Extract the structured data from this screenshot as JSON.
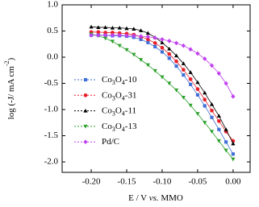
{
  "chart_data": {
    "type": "line",
    "x_label": "E / V vs. MMO",
    "y_label": "log (-J/ mA cm-2)",
    "x": [
      -0.2,
      -0.19,
      -0.18,
      -0.17,
      -0.16,
      -0.15,
      -0.14,
      -0.13,
      -0.12,
      -0.11,
      -0.1,
      -0.09,
      -0.08,
      -0.07,
      -0.06,
      -0.05,
      -0.04,
      -0.03,
      -0.02,
      -0.01,
      0.0
    ],
    "series": [
      {
        "name": "Co3O4-10",
        "color": "#3f6fd8",
        "marker": "square",
        "values": [
          0.42,
          0.42,
          0.42,
          0.41,
          0.41,
          0.4,
          0.38,
          0.34,
          0.28,
          0.2,
          0.1,
          -0.02,
          -0.17,
          -0.34,
          -0.52,
          -0.72,
          -0.93,
          -1.15,
          -1.38,
          -1.62,
          -1.85
        ]
      },
      {
        "name": "Co3O4-31",
        "color": "#e8202a",
        "marker": "circle",
        "values": [
          0.48,
          0.48,
          0.47,
          0.47,
          0.46,
          0.45,
          0.43,
          0.39,
          0.34,
          0.27,
          0.18,
          0.06,
          -0.08,
          -0.24,
          -0.42,
          -0.61,
          -0.81,
          -1.02,
          -1.22,
          -1.42,
          -1.6
        ]
      },
      {
        "name": "Co3O4-11",
        "color": "#000000",
        "marker": "triangle-up",
        "values": [
          0.58,
          0.57,
          0.57,
          0.56,
          0.56,
          0.55,
          0.54,
          0.51,
          0.46,
          0.38,
          0.28,
          0.16,
          0.03,
          -0.12,
          -0.29,
          -0.48,
          -0.68,
          -0.9,
          -1.12,
          -1.38,
          -1.65
        ]
      },
      {
        "name": "Co3O4-13",
        "color": "#2ca02c",
        "marker": "triangle-down",
        "values": [
          0.44,
          0.41,
          0.36,
          0.3,
          0.22,
          0.14,
          0.05,
          -0.05,
          -0.15,
          -0.26,
          -0.38,
          -0.5,
          -0.63,
          -0.77,
          -0.92,
          -1.08,
          -1.25,
          -1.42,
          -1.6,
          -1.78,
          -1.95
        ]
      },
      {
        "name": "Pd/C",
        "color": "#c040f0",
        "marker": "diamond",
        "values": [
          0.42,
          0.42,
          0.42,
          0.42,
          0.42,
          0.41,
          0.41,
          0.4,
          0.39,
          0.37,
          0.34,
          0.31,
          0.27,
          0.22,
          0.15,
          0.07,
          -0.03,
          -0.16,
          -0.31,
          -0.5,
          -0.75
        ]
      }
    ],
    "xlim": [
      -0.241,
      0.024
    ],
    "ylim": [
      -2.2,
      1.0
    ],
    "xticks": [
      {
        "value": -0.2,
        "label": "-0.20"
      },
      -0.15,
      {
        "value": -0.1,
        "label": "-0.10"
      },
      -0.05,
      {
        "value": 0,
        "label": "0.00"
      }
    ],
    "yticks": [
      {
        "value": 1,
        "label": "1.0"
      },
      0.5,
      {
        "value": 0,
        "label": "0.0"
      },
      -0.5,
      {
        "value": -1,
        "label": "-1.0"
      },
      -1.5,
      {
        "value": -2,
        "label": "-2.0"
      }
    ],
    "legend_position": "center left"
  }
}
